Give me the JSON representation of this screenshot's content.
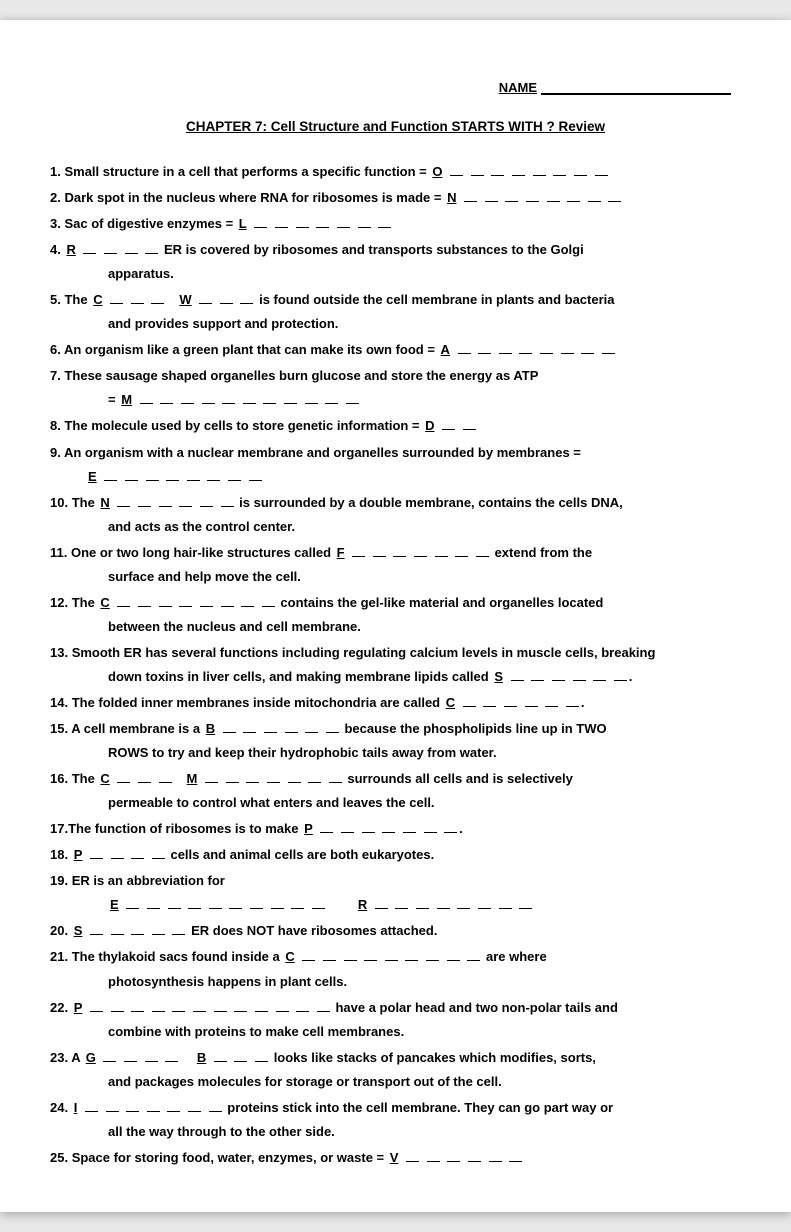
{
  "header": {
    "name_label": "NAME"
  },
  "title": "CHAPTER 7: Cell Structure and Function STARTS WITH ? Review",
  "q": {
    "1": {
      "t": "Small structure in a cell that performs a specific function = ",
      "l": "O"
    },
    "2": {
      "t": "Dark spot in the nucleus where RNA for ribosomes is made = ",
      "l": "N"
    },
    "3": {
      "t": "Sac of digestive enzymes = ",
      "l": "L"
    },
    "4": {
      "l": "R",
      "t": " ER is covered by ribosomes and transports substances to the Golgi",
      "c": "apparatus."
    },
    "5": {
      "t1": "The ",
      "l1": "C",
      "l2": "W",
      "t2": " is found outside the cell membrane in plants and bacteria",
      "c": "and provides support and protection."
    },
    "6": {
      "t": "An organism like a green plant that can make its own food = ",
      "l": "A"
    },
    "7": {
      "t": "These sausage shaped organelles burn glucose and store the energy as ATP",
      "c": "= ",
      "l": "M"
    },
    "8": {
      "t": "The molecule used by cells to store genetic information = ",
      "l": "D"
    },
    "9": {
      "t": "An organism with a nuclear membrane and organelles surrounded by membranes =",
      "l": "E"
    },
    "10": {
      "t1": "The ",
      "l": "N",
      "t2": " is surrounded by a double membrane, contains the cells DNA,",
      "c": "and acts as the control center."
    },
    "11": {
      "t1": "One or two long hair-like structures called ",
      "l": "F",
      "t2": " extend from the",
      "c": "surface and help move the cell."
    },
    "12": {
      "t1": "The ",
      "l": "C",
      "t2": " contains the gel-like material and organelles located",
      "c": "between the nucleus and cell membrane."
    },
    "13": {
      "t1": "Smooth ER has several functions including regulating calcium levels in muscle cells, breaking",
      "c": "down toxins in liver cells, and making membrane lipids called ",
      "l": "S"
    },
    "14": {
      "t1": "The folded inner membranes inside mitochondria are called ",
      "l": "C"
    },
    "15": {
      "t1": "A cell membrane is a ",
      "l": "B",
      "t2": " because the phospholipids line up in TWO",
      "c": "ROWS to try and keep their hydrophobic tails away from water."
    },
    "16": {
      "t1": "The ",
      "l1": "C",
      "l2": "M",
      "t2": " surrounds all cells and is selectively",
      "c": "permeable to control what enters and leaves the cell."
    },
    "17": {
      "t": "The function of ribosomes is to make ",
      "l": "P"
    },
    "18": {
      "l": "P",
      "t": " cells and animal cells are both eukaryotes."
    },
    "19": {
      "t": "ER is an abbreviation for",
      "l1": "E",
      "l2": "R"
    },
    "20": {
      "l": "S",
      "t": " ER does NOT have ribosomes attached."
    },
    "21": {
      "t1": " The thylakoid sacs found inside a ",
      "l": "C",
      "t2": " are where",
      "c": "photosynthesis happens in plant cells."
    },
    "22": {
      "l": "P",
      "t": " have a polar head and two non-polar tails and",
      "c": "combine with proteins to make cell membranes."
    },
    "23": {
      "t1": "A ",
      "l1": "G",
      "l2": "B",
      "t2": " looks like stacks of pancakes which modifies, sorts,",
      "c": "and packages molecules for storage or transport out of the cell."
    },
    "24": {
      "l": "I",
      "t": " proteins stick into the cell membrane. They can go part way or",
      "c": "all the way through to the other side."
    },
    "25": {
      "t": "Space for storing food, water, enzymes, or waste = ",
      "l": "V"
    }
  }
}
